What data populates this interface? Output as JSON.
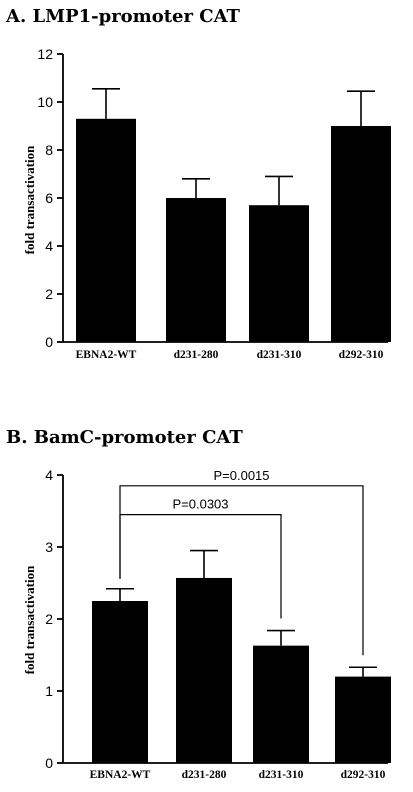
{
  "chart_data": [
    {
      "type": "bar",
      "title": "A. LMP1-promoter CAT",
      "ylabel": "fold  transactivation",
      "categories": [
        "EBNA2-WT",
        "d231-280",
        "d231-310",
        "d292-310"
      ],
      "values": [
        9.3,
        6.0,
        5.7,
        9.0
      ],
      "errors": [
        1.25,
        0.8,
        1.2,
        1.45
      ],
      "ylim": [
        0,
        12
      ],
      "yticks": [
        "0",
        "2",
        "4",
        "6",
        "8",
        "10",
        "12"
      ],
      "annotations": []
    },
    {
      "type": "bar",
      "title": "B. BamC-promoter CAT",
      "ylabel": "fold  transactivation",
      "categories": [
        "EBNA2-WT",
        "d231-280",
        "d231-310",
        "d292-310"
      ],
      "values": [
        2.25,
        2.57,
        1.63,
        1.2
      ],
      "errors": [
        0.17,
        0.38,
        0.21,
        0.13
      ],
      "ylim": [
        0,
        4
      ],
      "yticks": [
        "0",
        "1",
        "2",
        "3",
        "4"
      ],
      "annotations": [
        {
          "label": "P=0.0303",
          "from": 0,
          "to": 2,
          "level": 3.45
        },
        {
          "label": "P=0.0015",
          "from": 0,
          "to": 3,
          "level": 3.85
        }
      ]
    }
  ]
}
